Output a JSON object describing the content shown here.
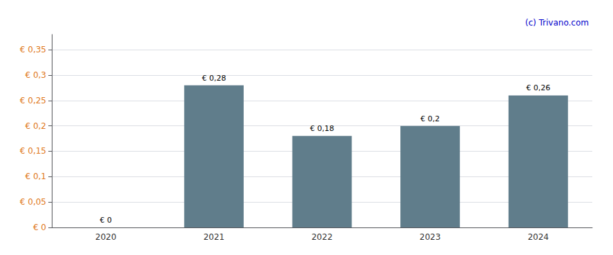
{
  "chart_data": {
    "type": "bar",
    "categories": [
      "2020",
      "2021",
      "2022",
      "2023",
      "2024"
    ],
    "values": [
      0.0,
      0.28,
      0.18,
      0.2,
      0.26
    ],
    "value_labels": [
      "€ 0",
      "€ 0,28",
      "€ 0,18",
      "€ 0,2",
      "€ 0,26"
    ],
    "data_labels": true,
    "color": "#607d8b",
    "ylim": [
      0,
      0.38
    ],
    "yticks": [
      {
        "value": 0,
        "label": "€ 0"
      },
      {
        "value": 0.05,
        "label": "€ 0,05"
      },
      {
        "value": 0.1,
        "label": "€ 0,1"
      },
      {
        "value": 0.15,
        "label": "€ 0,15"
      },
      {
        "value": 0.2,
        "label": "€ 0,2"
      },
      {
        "value": 0.25,
        "label": "€ 0,25"
      },
      {
        "value": 0.3,
        "label": "€ 0,3"
      },
      {
        "value": 0.35,
        "label": "€ 0,35"
      }
    ],
    "grid": true,
    "annotations": [
      "(c) Trivano.com"
    ]
  }
}
